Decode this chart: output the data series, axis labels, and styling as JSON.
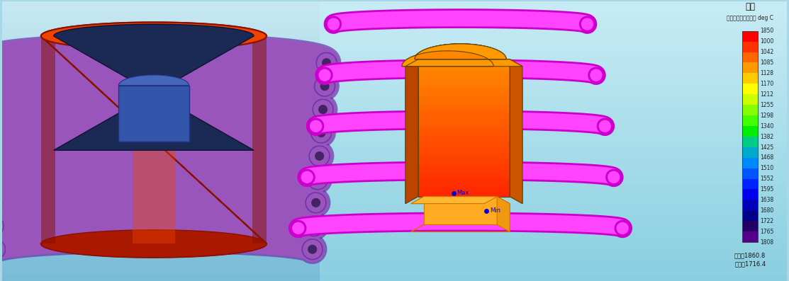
{
  "colorbar_title": "温度",
  "colorbar_subtitle": "コンタープロット： deg C",
  "colorbar_max_label": "最大：1860.8",
  "colorbar_min_label": "最小：1716.4",
  "colorbar_ticks": [
    1850,
    1808,
    1765,
    1722,
    1680,
    1638,
    1595,
    1552,
    1510,
    1468,
    1425,
    1382,
    1340,
    1298,
    1255,
    1212,
    1170,
    1128,
    1085,
    1042,
    1000
  ],
  "colorbar_colors_top_to_bottom": [
    "#FF0000",
    "#FF3300",
    "#FF6600",
    "#FF9900",
    "#FFCC00",
    "#FFFF00",
    "#CCFF00",
    "#88FF00",
    "#44FF00",
    "#00EE00",
    "#00CC88",
    "#00AACC",
    "#0088FF",
    "#0055FF",
    "#0022FF",
    "#0000EE",
    "#0000BB",
    "#000088",
    "#220066",
    "#550088",
    "#880099"
  ],
  "left_bg_top": "#C8E8F2",
  "left_bg_bottom": "#7ABCD8",
  "right_bg_top": "#C8ECF5",
  "right_bg_bottom": "#8ACFE0",
  "coil_color_left_main": "#9955BB",
  "coil_color_left_dark": "#6633AA",
  "coil_color_right_main": "#FF44FF",
  "coil_color_right_dark": "#CC00CC",
  "cyl_red_main": "#CC2200",
  "cyl_red_light": "#EE4400",
  "cyl_red_dark": "#881100",
  "cyl_red_inner": "#AA1800",
  "blue_box_main": "#3355AA",
  "blue_box_dark": "#223388",
  "wp_orange": "#FF8800",
  "wp_orange_dark": "#CC5500",
  "wp_red": "#DD2200",
  "small_box_top": "#FFB830",
  "small_box_front": "#FFAA20",
  "small_box_side": "#EE9910",
  "max_label": "Max",
  "min_label": "Min"
}
